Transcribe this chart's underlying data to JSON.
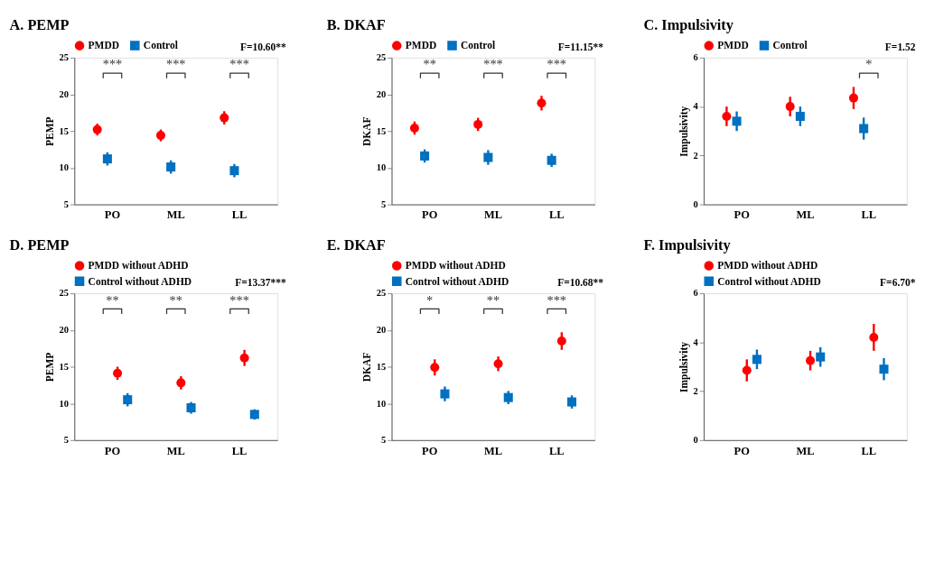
{
  "chart_data": [
    {
      "type": "scatter",
      "title": "A. PEMP",
      "ylabel": "PEMP",
      "categories": [
        "PO",
        "ML",
        "LL"
      ],
      "ylim": [
        5,
        25
      ],
      "yticks": [
        5,
        10,
        15,
        20,
        25
      ],
      "grid": false,
      "legend": "top",
      "series": [
        {
          "name": "PMDD",
          "color": "#ff0000",
          "marker": "circle",
          "values": [
            15.2,
            14.4,
            16.8
          ],
          "errors": [
            0.8,
            0.8,
            0.9
          ]
        },
        {
          "name": "Control",
          "color": "#0070c0",
          "marker": "square",
          "values": [
            11.2,
            10.1,
            9.6
          ],
          "errors": [
            0.9,
            0.9,
            0.9
          ]
        }
      ],
      "annotations": [
        "F=10.60**",
        "***",
        "***",
        "***"
      ]
    },
    {
      "type": "scatter",
      "title": "B. DKAF",
      "ylabel": "DKAF",
      "categories": [
        "PO",
        "ML",
        "LL"
      ],
      "ylim": [
        5,
        25
      ],
      "yticks": [
        5,
        10,
        15,
        20,
        25
      ],
      "grid": false,
      "legend": "top",
      "series": [
        {
          "name": "PMDD",
          "color": "#ff0000",
          "marker": "circle",
          "values": [
            15.4,
            15.9,
            18.8
          ],
          "errors": [
            0.9,
            0.9,
            1.0
          ]
        },
        {
          "name": "Control",
          "color": "#0070c0",
          "marker": "square",
          "values": [
            11.6,
            11.4,
            11.0
          ],
          "errors": [
            0.9,
            1.0,
            0.9
          ]
        }
      ],
      "annotations": [
        "F=11.15**",
        "**",
        "***",
        "***"
      ]
    },
    {
      "type": "scatter",
      "title": "C. Impulsivity",
      "ylabel": "Impulsivity",
      "categories": [
        "PO",
        "ML",
        "LL"
      ],
      "ylim": [
        0,
        6
      ],
      "yticks": [
        0,
        2,
        4,
        6
      ],
      "grid": false,
      "legend": "top",
      "series": [
        {
          "name": "PMDD",
          "color": "#ff0000",
          "marker": "circle",
          "values": [
            3.6,
            4.0,
            4.35
          ],
          "errors": [
            0.4,
            0.4,
            0.45
          ]
        },
        {
          "name": "Control",
          "color": "#0070c0",
          "marker": "square",
          "values": [
            3.4,
            3.6,
            3.1
          ],
          "errors": [
            0.4,
            0.4,
            0.45
          ]
        }
      ],
      "annotations": [
        "F=1.52",
        "*"
      ]
    },
    {
      "type": "scatter",
      "title": "D. PEMP",
      "ylabel": "PEMP",
      "categories": [
        "PO",
        "ML",
        "LL"
      ],
      "ylim": [
        5,
        25
      ],
      "yticks": [
        5,
        10,
        15,
        20,
        25
      ],
      "grid": false,
      "legend": "top",
      "series": [
        {
          "name": "PMDD without ADHD",
          "color": "#ff0000",
          "marker": "circle",
          "values": [
            14.1,
            12.8,
            16.2
          ],
          "errors": [
            0.9,
            0.9,
            1.1
          ]
        },
        {
          "name": "Control without ADHD",
          "color": "#0070c0",
          "marker": "square",
          "values": [
            10.5,
            9.4,
            8.5
          ],
          "errors": [
            0.9,
            0.8,
            0.7
          ]
        }
      ],
      "annotations": [
        "F=13.37***",
        "**",
        "**",
        "***"
      ]
    },
    {
      "type": "scatter",
      "title": "E. DKAF",
      "ylabel": "DKAF",
      "categories": [
        "PO",
        "ML",
        "LL"
      ],
      "ylim": [
        5,
        25
      ],
      "yticks": [
        5,
        10,
        15,
        20,
        25
      ],
      "grid": false,
      "legend": "top",
      "series": [
        {
          "name": "PMDD without ADHD",
          "color": "#ff0000",
          "marker": "circle",
          "values": [
            14.9,
            15.4,
            18.5
          ],
          "errors": [
            1.1,
            1.0,
            1.2
          ]
        },
        {
          "name": "Control without ADHD",
          "color": "#0070c0",
          "marker": "square",
          "values": [
            11.3,
            10.8,
            10.2
          ],
          "errors": [
            1.0,
            0.9,
            0.9
          ]
        }
      ],
      "annotations": [
        "F=10.68**",
        "*",
        "**",
        "***"
      ]
    },
    {
      "type": "scatter",
      "title": "F. Impulsivity",
      "ylabel": "Impulsivity",
      "categories": [
        "PO",
        "ML",
        "LL"
      ],
      "ylim": [
        0,
        6
      ],
      "yticks": [
        0,
        2,
        4,
        6
      ],
      "grid": false,
      "legend": "top",
      "series": [
        {
          "name": "PMDD without ADHD",
          "color": "#ff0000",
          "marker": "circle",
          "values": [
            2.85,
            3.25,
            4.2
          ],
          "errors": [
            0.45,
            0.4,
            0.55
          ]
        },
        {
          "name": "Control without ADHD",
          "color": "#0070c0",
          "marker": "square",
          "values": [
            3.3,
            3.4,
            2.9
          ],
          "errors": [
            0.4,
            0.4,
            0.45
          ]
        }
      ],
      "annotations": [
        "F=6.70*"
      ]
    }
  ]
}
